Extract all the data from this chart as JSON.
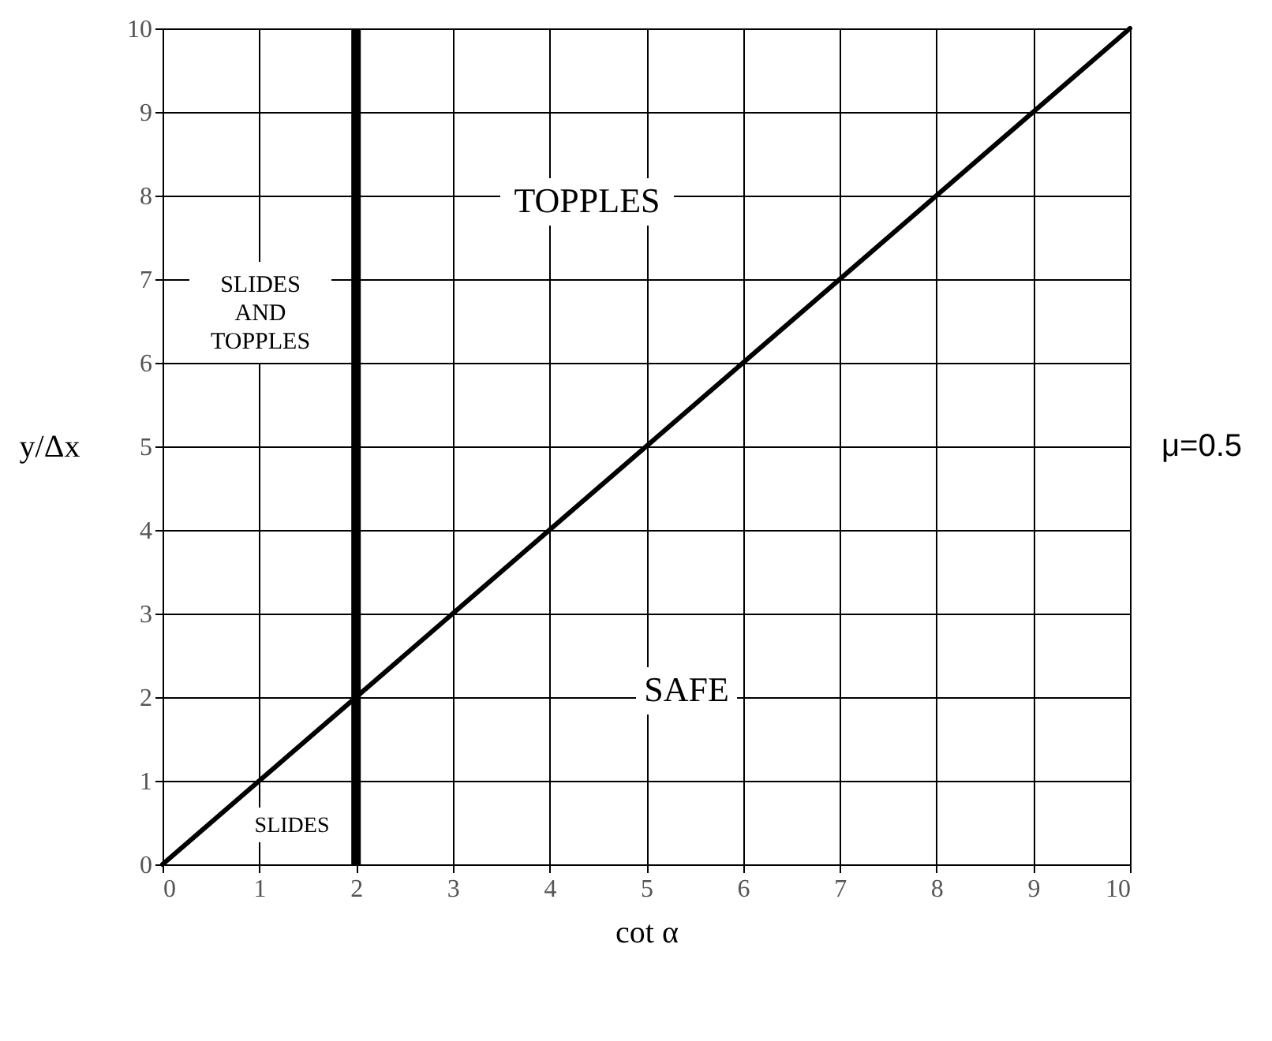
{
  "chart_data": {
    "type": "line",
    "xlabel": "cot α",
    "ylabel": "y/Δx",
    "x": [
      0,
      10
    ],
    "series": [
      {
        "color": "#000000",
        "values": [
          0,
          10
        ]
      }
    ],
    "xlim": [
      0,
      10
    ],
    "ylim": [
      0,
      10
    ],
    "xticks": [
      0,
      1,
      2,
      3,
      4,
      5,
      6,
      7,
      8,
      9,
      10
    ],
    "yticks": [
      0,
      1,
      2,
      3,
      4,
      5,
      6,
      7,
      8,
      9,
      10
    ],
    "grid": true,
    "marker": "none",
    "line_style": "solid",
    "ref_lines": [
      {
        "axis": "x",
        "value": 2,
        "color": "#000000"
      }
    ],
    "annotations": [
      "TOPPLES",
      "SLIDES\nAND\nTOPPLES",
      "SAFE",
      "SLIDES",
      "μ=0.5"
    ]
  }
}
